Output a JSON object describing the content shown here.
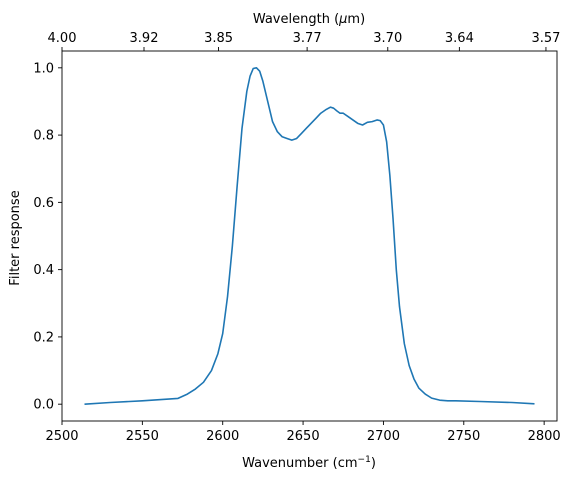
{
  "chart_data": {
    "type": "line",
    "xlabel": "Wavenumber (cm",
    "xlabel_sup": "−1",
    "xlabel_end": ")",
    "ylabel": "Filter response",
    "top_xlabel": "Wavelength (",
    "top_xlabel_mu": "μ",
    "top_xlabel_end": "m)",
    "xlim": [
      2500,
      2808
    ],
    "ylim": [
      -0.05,
      1.05
    ],
    "x_ticks": [
      2500,
      2550,
      2600,
      2650,
      2700,
      2750,
      2800
    ],
    "x_tick_labels": [
      "2500",
      "2550",
      "2600",
      "2650",
      "2700",
      "2750",
      "2800"
    ],
    "y_ticks": [
      0.0,
      0.2,
      0.4,
      0.6,
      0.8,
      1.0
    ],
    "y_tick_labels": [
      "0.0",
      "0.2",
      "0.4",
      "0.6",
      "0.8",
      "1.0"
    ],
    "top_ticks_wavelength_um": [
      4.0,
      3.92,
      3.85,
      3.77,
      3.7,
      3.64,
      3.57
    ],
    "top_tick_labels": [
      "4.00",
      "3.92",
      "3.85",
      "3.77",
      "3.70",
      "3.64",
      "3.57"
    ],
    "grid": false,
    "line_color": "#1f77b4",
    "series": [
      {
        "x": [
          2514,
          2530,
          2550,
          2572,
          2578,
          2583,
          2588,
          2593,
          2597,
          2600,
          2603,
          2606,
          2609,
          2612,
          2615,
          2617,
          2619,
          2621,
          2623,
          2625,
          2628,
          2631,
          2634,
          2637,
          2640,
          2643,
          2646,
          2649,
          2652,
          2655,
          2658,
          2661,
          2664,
          2667,
          2669,
          2671,
          2673,
          2675,
          2678,
          2681,
          2684,
          2687,
          2690,
          2693,
          2696,
          2698,
          2700,
          2702,
          2704,
          2706,
          2708,
          2710,
          2713,
          2716,
          2719,
          2722,
          2726,
          2730,
          2735,
          2740,
          2745,
          2760,
          2780,
          2794
        ],
        "y": [
          0.0,
          0.005,
          0.01,
          0.017,
          0.03,
          0.045,
          0.065,
          0.1,
          0.15,
          0.21,
          0.32,
          0.47,
          0.65,
          0.82,
          0.93,
          0.975,
          0.998,
          1.0,
          0.99,
          0.96,
          0.9,
          0.84,
          0.81,
          0.795,
          0.79,
          0.785,
          0.79,
          0.805,
          0.82,
          0.835,
          0.85,
          0.865,
          0.875,
          0.883,
          0.88,
          0.872,
          0.865,
          0.865,
          0.855,
          0.845,
          0.835,
          0.83,
          0.838,
          0.84,
          0.845,
          0.843,
          0.83,
          0.78,
          0.68,
          0.55,
          0.4,
          0.29,
          0.18,
          0.115,
          0.075,
          0.048,
          0.03,
          0.018,
          0.012,
          0.01,
          0.01,
          0.008,
          0.005,
          0.001
        ]
      }
    ]
  }
}
